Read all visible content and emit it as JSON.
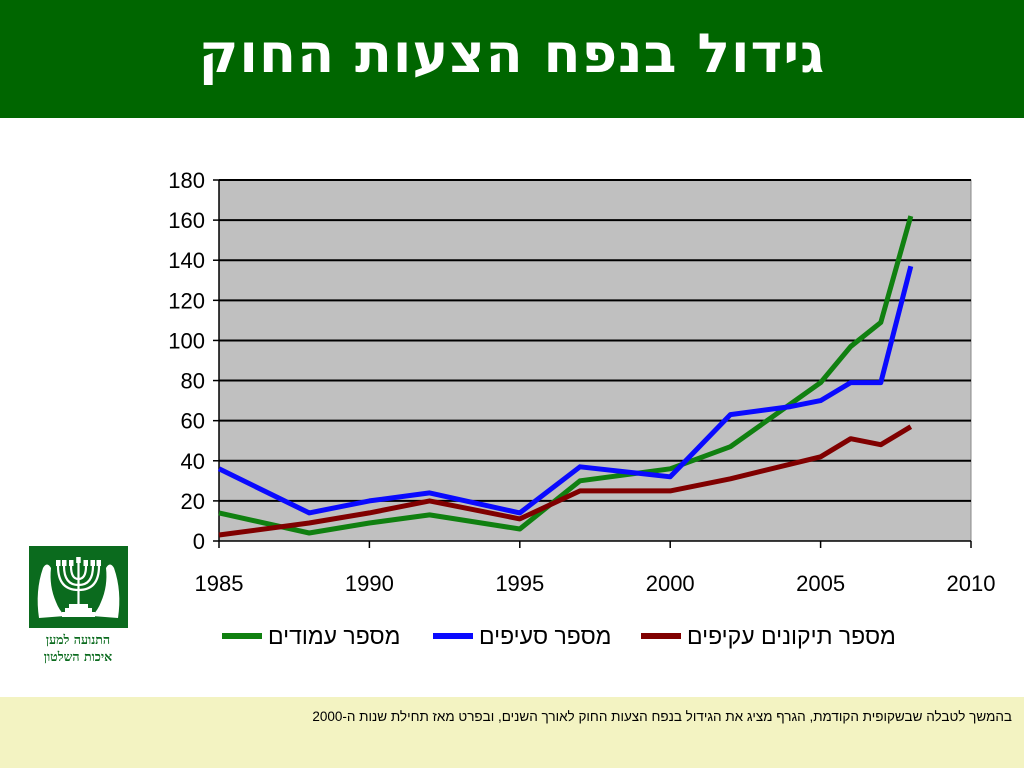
{
  "slide": {
    "title": "גידול בנפח הצעות החוק",
    "logo_caption_line1": "התנועה למען",
    "logo_caption_line2": "איכות השלטון",
    "footer_text": "בהמשך לטבלה שבשקופית הקודמת, הגרף מציג את הגידול בנפח הצעות החוק לאורך השנים, ובפרט מאז תחילת שנות ה-2000"
  },
  "colors": {
    "title_bg": "#006600",
    "plot_bg": "#c0c0c0",
    "footer_bg": "#f3f3c2",
    "series_green": "#108010",
    "series_blue": "#0a0aff",
    "series_red": "#800000"
  },
  "chart_data": {
    "type": "line",
    "title": "",
    "xlabel": "",
    "ylabel": "",
    "xlim": [
      1985,
      2010
    ],
    "ylim": [
      0,
      180
    ],
    "x_ticks": [
      1985,
      1990,
      1995,
      2000,
      2005,
      2010
    ],
    "y_ticks": [
      0,
      20,
      40,
      60,
      80,
      100,
      120,
      140,
      160,
      180
    ],
    "grid": "horizontal",
    "legend_position": "bottom",
    "series": [
      {
        "name": "מספר עמודים",
        "color": "#108010",
        "x": [
          1985,
          1988,
          1990,
          1992,
          1995,
          1997,
          2000,
          2002,
          2005,
          2006,
          2007,
          2008
        ],
        "y": [
          14,
          4,
          9,
          13,
          6,
          30,
          36,
          47,
          79,
          97,
          109,
          162
        ]
      },
      {
        "name": "מספר סעיפים",
        "color": "#0a0aff",
        "x": [
          1985,
          1988,
          1990,
          1992,
          1995,
          1997,
          2000,
          2002,
          2004,
          2005,
          2006,
          2007,
          2008
        ],
        "y": [
          36,
          14,
          20,
          24,
          14,
          37,
          32,
          63,
          67,
          70,
          79,
          79,
          137
        ]
      },
      {
        "name": "מספר תיקונים עקיפים",
        "color": "#800000",
        "x": [
          1985,
          1988,
          1990,
          1992,
          1995,
          1997,
          2000,
          2002,
          2005,
          2006,
          2007,
          2008
        ],
        "y": [
          3,
          9,
          14,
          20,
          11,
          25,
          25,
          31,
          42,
          51,
          48,
          57
        ]
      }
    ]
  }
}
